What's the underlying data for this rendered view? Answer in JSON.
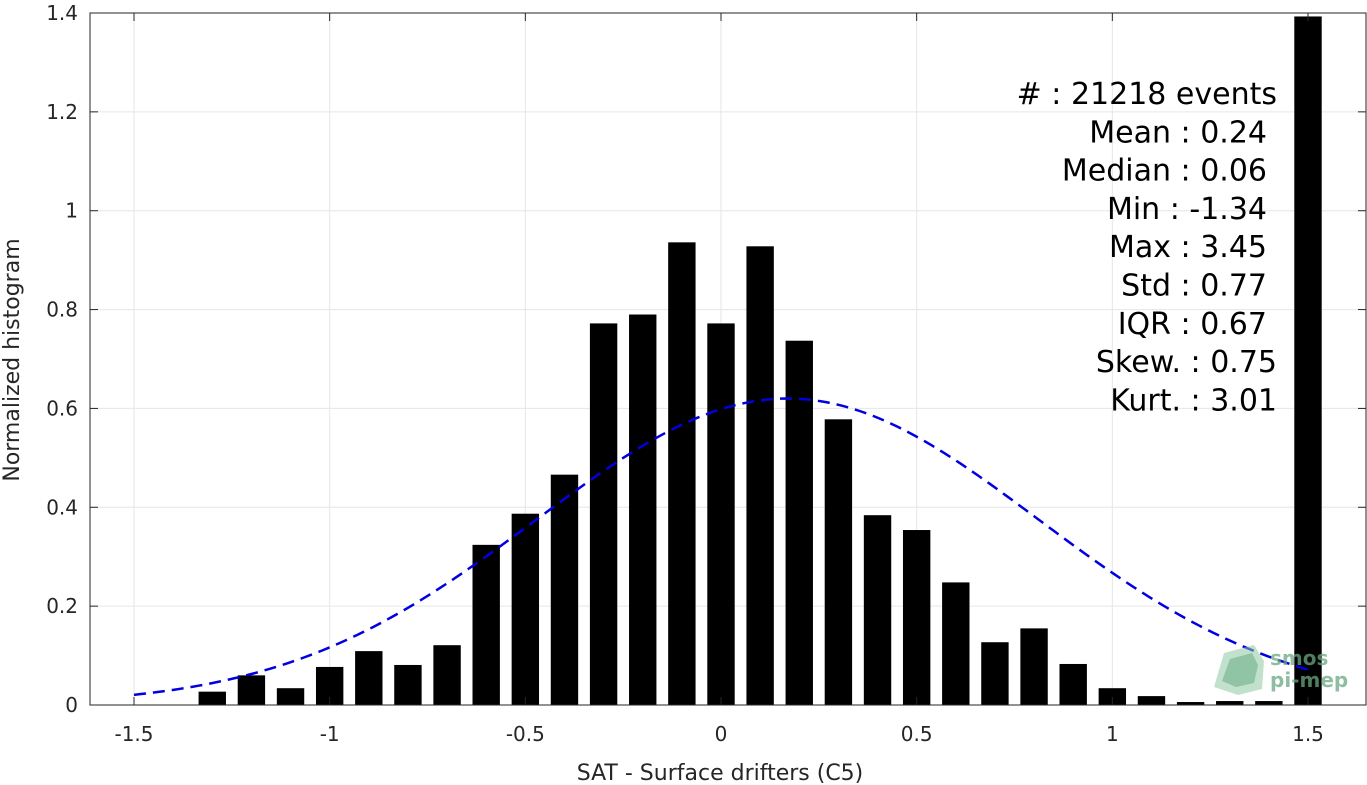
{
  "chart_data": {
    "type": "bar",
    "xlabel": "SAT - Surface drifters (C5)",
    "ylabel": "Normalized histogram",
    "xlim": [
      -1.5,
      1.5
    ],
    "ylim": [
      0,
      1.4
    ],
    "xticks": [
      "-1.5",
      "-1",
      "-0.5",
      "0",
      "0.5",
      "1",
      "1.5"
    ],
    "xtick_values": [
      -1.5,
      -1,
      -0.5,
      0,
      0.5,
      1,
      1.5
    ],
    "yticks": [
      "0",
      "0.2",
      "0.4",
      "0.6",
      "0.8",
      "1",
      "1.2",
      "1.4"
    ],
    "ytick_values": [
      0,
      0.2,
      0.4,
      0.6,
      0.8,
      1,
      1.2,
      1.4
    ],
    "grid": true,
    "bar_color": "#000000",
    "bin_centers": [
      -1.3,
      -1.2,
      -1.1,
      -1.0,
      -0.9,
      -0.8,
      -0.7,
      -0.6,
      -0.5,
      -0.4,
      -0.3,
      -0.2,
      -0.1,
      0.0,
      0.1,
      0.2,
      0.3,
      0.4,
      0.5,
      0.6,
      0.7,
      0.8,
      0.9,
      1.0,
      1.1,
      1.2,
      1.3,
      1.4,
      1.5
    ],
    "values": [
      0.027,
      0.06,
      0.034,
      0.077,
      0.109,
      0.081,
      0.121,
      0.324,
      0.387,
      0.466,
      0.772,
      0.79,
      0.936,
      0.772,
      0.928,
      0.737,
      0.578,
      0.384,
      0.354,
      0.248,
      0.127,
      0.155,
      0.083,
      0.034,
      0.018,
      0.006,
      0.008,
      0.008,
      1.393
    ],
    "fit": {
      "type": "normal",
      "mean": 0.17,
      "peak": 0.62,
      "sigma": 0.64,
      "x_range": [
        -1.5,
        1.5
      ],
      "color": "#0000e0",
      "style": "dashed"
    },
    "annotation_lines": [
      "#  : 21218 events",
      "Mean : 0.24",
      "Median : 0.06",
      "Min : -1.34",
      "Max : 3.45",
      "Std : 0.77",
      "IQR : 0.67",
      "Skew. : 0.75",
      "Kurt. : 3.01"
    ],
    "annotation_placement": "top-right"
  },
  "watermark": {
    "line1": "smos",
    "line2": "pi-mep",
    "color": "#6aa882"
  }
}
